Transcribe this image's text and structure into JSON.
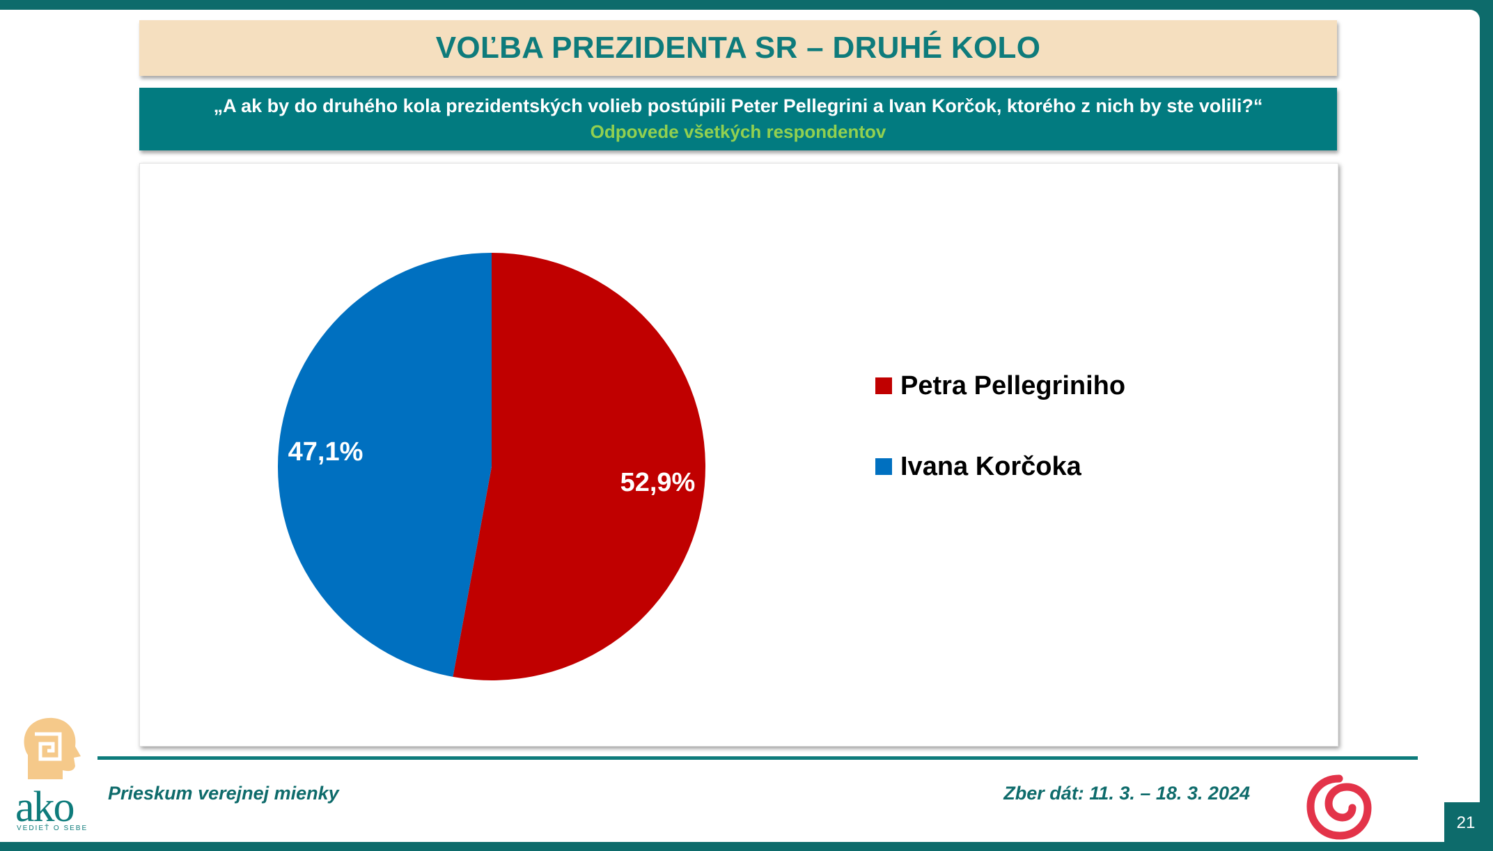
{
  "header": {
    "title": "VOĽBA PREZIDENTA SR – DRUHÉ KOLO",
    "question": "„A ak by do druhého kola prezidentských volieb postúpili Peter Pellegrini a Ivan Korčok, ktorého z nich by ste volili?“",
    "subtitle": "Odpovede všetkých respondentov"
  },
  "chart_data": {
    "type": "pie",
    "categories": [
      "Petra Pellegriniho",
      "Ivana Korčoka"
    ],
    "values": [
      52.9,
      47.1
    ],
    "labels": [
      "52,9%",
      "47,1%"
    ],
    "colors": [
      "#c00000",
      "#0070c0"
    ],
    "legend_position": "right"
  },
  "footer": {
    "left_text": "Prieskum verejnej mienky",
    "right_text": "Zber dát: 11. 3. – 18. 3. 2024",
    "page_number": "21"
  },
  "logo": {
    "wordmark": "ako",
    "tagline": "VEDIEŤ O SEBE"
  },
  "colors": {
    "teal": "#0e7b7b",
    "title_bg": "#f5dfbf",
    "question_bg": "#027b80",
    "subtitle": "#92d050"
  }
}
